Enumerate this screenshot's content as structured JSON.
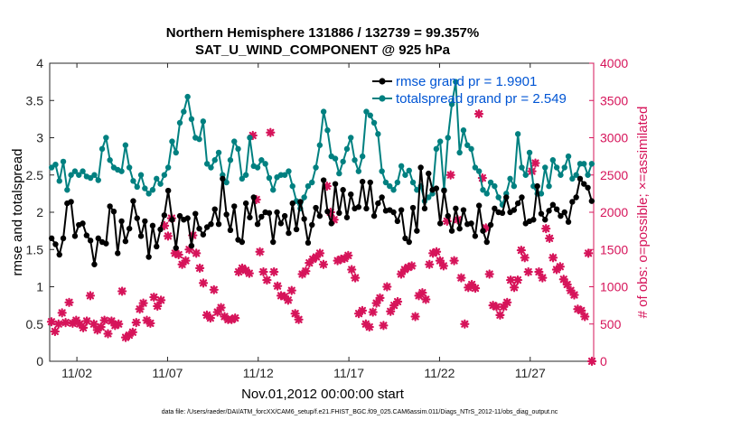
{
  "chart_data": {
    "type": "line",
    "title_line1": "Northern Hemisphere 131886 / 132739 = 99.357%",
    "title_line2": "SAT_U_WIND_COMPONENT @ 925 hPa",
    "xlabel": "Nov.01,2012 00:00:00 start",
    "ylabel_left": "rmse and totalspread",
    "ylabel_right": "# of obs: o=possible; ×=assimilated",
    "footer": "data file: /Users/raeder/DAI/ATM_forcXX/CAM6_setup/f.e21.FHIST_BGC.f09_025.CAM6assim.011/Diags_NTrS_2012-11/obs_diag_output.nc",
    "xlim": [
      0.5,
      30.5
    ],
    "xticks": [
      {
        "day": 2,
        "label": "11/02"
      },
      {
        "day": 7,
        "label": "11/07"
      },
      {
        "day": 12,
        "label": "11/12"
      },
      {
        "day": 17,
        "label": "11/17"
      },
      {
        "day": 22,
        "label": "11/22"
      },
      {
        "day": 27,
        "label": "11/27"
      }
    ],
    "ylim_left": [
      0,
      4
    ],
    "yticks_left": [
      "0",
      "0.5",
      "1",
      "1.5",
      "2",
      "2.5",
      "3",
      "3.5",
      "4"
    ],
    "ylim_right": [
      0,
      4000
    ],
    "yticks_right": [
      "0",
      "500",
      "1000",
      "1500",
      "2000",
      "2500",
      "3000",
      "3500",
      "4000"
    ],
    "legend_position": "top-right",
    "colors": {
      "rmse": "#000000",
      "spread": "#008080",
      "obs": "#d6145a",
      "legend_text": "#0055d4",
      "right_axis": "#d6145a"
    },
    "series": [
      {
        "name": "rmse grand pr = 1.9901",
        "values": [
          1.65,
          1.57,
          1.43,
          1.65,
          2.12,
          2.14,
          1.68,
          1.83,
          1.85,
          1.69,
          1.62,
          1.3,
          1.65,
          1.6,
          1.58,
          2.08,
          2.01,
          1.45,
          1.88,
          1.61,
          1.78,
          2.15,
          1.92,
          1.68,
          1.88,
          1.4,
          1.82,
          1.54,
          1.77,
          1.96,
          2.29,
          1.9,
          1.52,
          1.95,
          1.9,
          1.92,
          1.55,
          1.98,
          1.78,
          1.7,
          1.8,
          1.84,
          2.04,
          1.84,
          2.45,
          1.97,
          1.76,
          2.08,
          1.63,
          1.6,
          2.12,
          1.93,
          2.2,
          1.84,
          1.94,
          2.0,
          1.99,
          1.6,
          2.0,
          1.85,
          1.95,
          1.72,
          2.12,
          1.77,
          2.14,
          1.91,
          1.59,
          1.83,
          2.06,
          1.95,
          2.43,
          2.01,
          1.85,
          2.38,
          1.99,
          2.3,
          1.93,
          2.24,
          2.05,
          2.07,
          2.41,
          2.05,
          2.4,
          1.95,
          2.12,
          2.2,
          2.02,
          2.03,
          2.0,
          1.88,
          2.03,
          1.65,
          1.6,
          2.06,
          1.75,
          2.6,
          2.05,
          2.52,
          2.3,
          2.32,
          1.85,
          2.29,
          1.95,
          1.75,
          2.05,
          1.78,
          2.03,
          1.84,
          1.85,
          1.68,
          2.09,
          1.75,
          1.6,
          1.83,
          2.05,
          2.0,
          1.99,
          2.2,
          2.0,
          2.03,
          2.12,
          2.2,
          1.85,
          1.88,
          1.9,
          2.35,
          1.98,
          1.9,
          2.02,
          2.1,
          2.04,
          1.95,
          2.0,
          1.87,
          2.14,
          2.2,
          2.45,
          2.38,
          2.33,
          2.15
        ]
      },
      {
        "name": "totalspread grand pr = 2.549",
        "values": [
          2.6,
          2.64,
          2.42,
          2.68,
          2.3,
          2.5,
          2.55,
          2.5,
          2.55,
          2.48,
          2.46,
          2.5,
          2.43,
          2.85,
          3.0,
          2.7,
          2.6,
          2.57,
          2.55,
          2.9,
          2.6,
          2.42,
          2.34,
          2.5,
          2.32,
          2.25,
          2.3,
          2.45,
          2.38,
          2.5,
          2.6,
          2.95,
          2.8,
          3.2,
          3.35,
          3.55,
          3.25,
          3.0,
          2.98,
          3.22,
          2.65,
          2.6,
          2.7,
          2.8,
          2.5,
          2.4,
          2.7,
          2.95,
          2.85,
          2.45,
          2.5,
          3.0,
          2.62,
          2.6,
          2.7,
          2.65,
          2.46,
          2.3,
          2.47,
          2.5,
          2.5,
          2.55,
          2.35,
          2.15,
          2.05,
          2.2,
          2.35,
          2.4,
          2.6,
          2.9,
          3.35,
          3.1,
          2.75,
          2.72,
          2.52,
          2.68,
          2.85,
          3.0,
          2.7,
          2.55,
          2.75,
          3.35,
          3.3,
          3.2,
          3.05,
          2.55,
          2.4,
          2.35,
          2.3,
          2.4,
          2.62,
          2.5,
          2.56,
          2.4,
          2.3,
          2.35,
          2.15,
          2.2,
          2.25,
          2.85,
          2.95,
          2.3,
          3.0,
          3.45,
          3.75,
          2.8,
          3.1,
          2.9,
          2.85,
          2.6,
          2.55,
          2.3,
          2.25,
          2.4,
          2.35,
          2.2,
          2.1,
          2.25,
          2.45,
          2.35,
          3.05,
          2.6,
          2.5,
          2.8,
          2.35,
          2.25,
          2.25,
          2.6,
          2.35,
          2.7,
          2.6,
          2.5,
          2.6,
          2.75,
          2.45,
          2.5,
          2.65,
          2.65,
          2.5,
          2.65
        ]
      },
      {
        "name": "assimilated",
        "values": [
          530,
          400,
          500,
          650,
          520,
          790,
          510,
          550,
          500,
          450,
          540,
          880,
          500,
          420,
          460,
          550,
          370,
          540,
          480,
          500,
          940,
          320,
          350,
          390,
          520,
          700,
          780,
          550,
          510,
          860,
          740,
          820,
          1820,
          1680,
          1920,
          1450,
          1430,
          1300,
          1350,
          1500,
          1690,
          1450,
          1250,
          1050,
          620,
          580,
          960,
          660,
          720,
          600,
          560,
          560,
          580,
          1200,
          1250,
          1220,
          1180,
          3030,
          2170,
          1470,
          1200,
          1090,
          3070,
          1200,
          1010,
          880,
          870,
          820,
          950,
          640,
          560,
          1170,
          1210,
          1320,
          1370,
          1400,
          1450,
          1300,
          2350,
          2000,
          1900,
          1350,
          1370,
          1380,
          1420,
          1230,
          1120,
          640,
          680,
          500,
          460,
          660,
          780,
          850,
          480,
          1000,
          670,
          750,
          800,
          1170,
          1230,
          1260,
          1280,
          600,
          880,
          920,
          830,
          1300,
          1450,
          1470,
          1350,
          1280,
          1880,
          2500,
          1350,
          1900,
          1120,
          500,
          990,
          1030,
          980,
          3320,
          2460,
          1790,
          1170,
          750,
          730,
          620,
          730,
          790,
          1090,
          990,
          1090,
          1490,
          1390,
          1200,
          2550,
          2660,
          1200,
          1120,
          1780,
          1650,
          1390,
          1230,
          1270,
          1100,
          1030,
          950,
          890,
          700,
          680,
          600,
          1450,
          0
        ]
      }
    ]
  }
}
